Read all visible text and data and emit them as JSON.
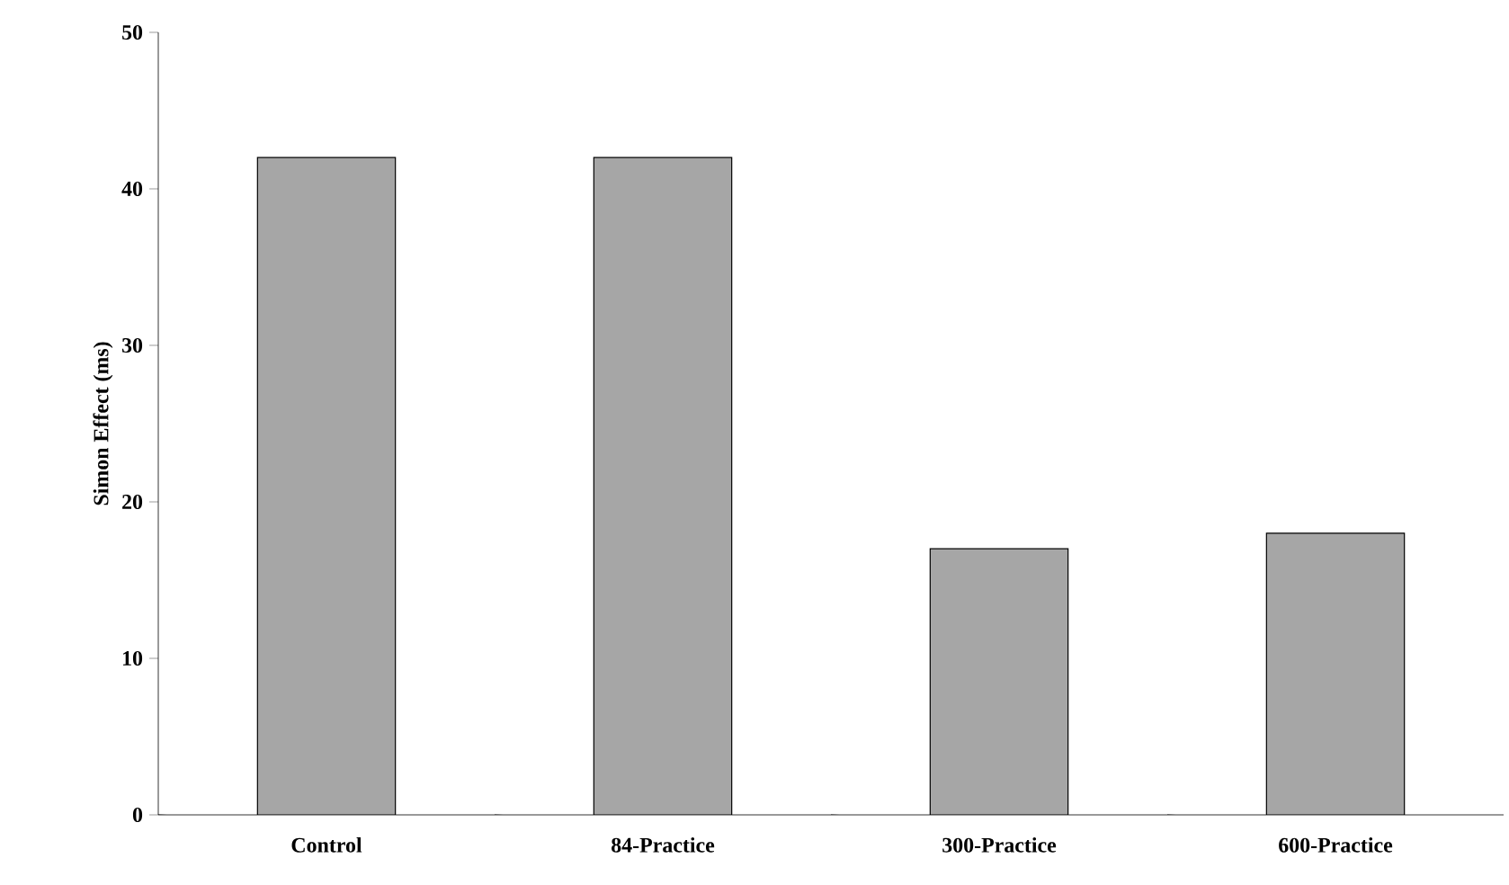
{
  "chart_data": {
    "type": "bar",
    "ylabel": "Simon Effect (ms)",
    "categories": [
      "Control",
      "84-Practice",
      "300-Practice",
      "600-Practice"
    ],
    "values": [
      42,
      42,
      17,
      18
    ],
    "color": "#a6a6a6",
    "ylim": [
      0,
      50
    ],
    "yticks": [
      0,
      10,
      20,
      30,
      40,
      50
    ]
  }
}
